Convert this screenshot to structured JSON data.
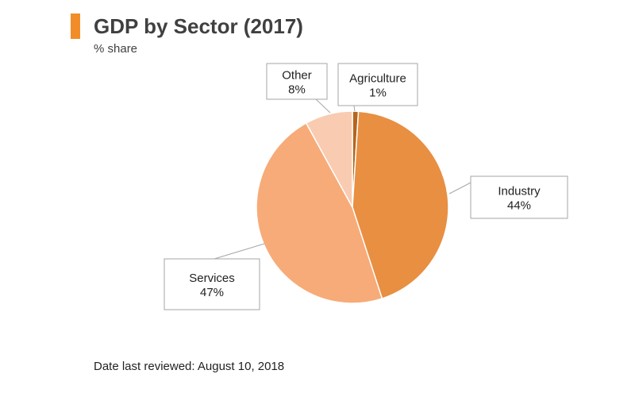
{
  "header": {
    "title": "GDP by Sector (2017)",
    "subtitle": "% share"
  },
  "footer": {
    "text": "Date last reviewed: August 10, 2018"
  },
  "chart_data": {
    "type": "pie",
    "slices": [
      {
        "label": "Agriculture",
        "value": 1,
        "value_label": "1%",
        "color": "#b5651d"
      },
      {
        "label": "Industry",
        "value": 44,
        "value_label": "44%",
        "color": "#e88f42"
      },
      {
        "label": "Services",
        "value": 47,
        "value_label": "47%",
        "color": "#f7ab78"
      },
      {
        "label": "Other",
        "value": 8,
        "value_label": "8%",
        "color": "#f9cbb1"
      }
    ],
    "start_angle": "12 o'clock",
    "direction": "clockwise",
    "legend": "none",
    "data_labels": "callouts"
  }
}
